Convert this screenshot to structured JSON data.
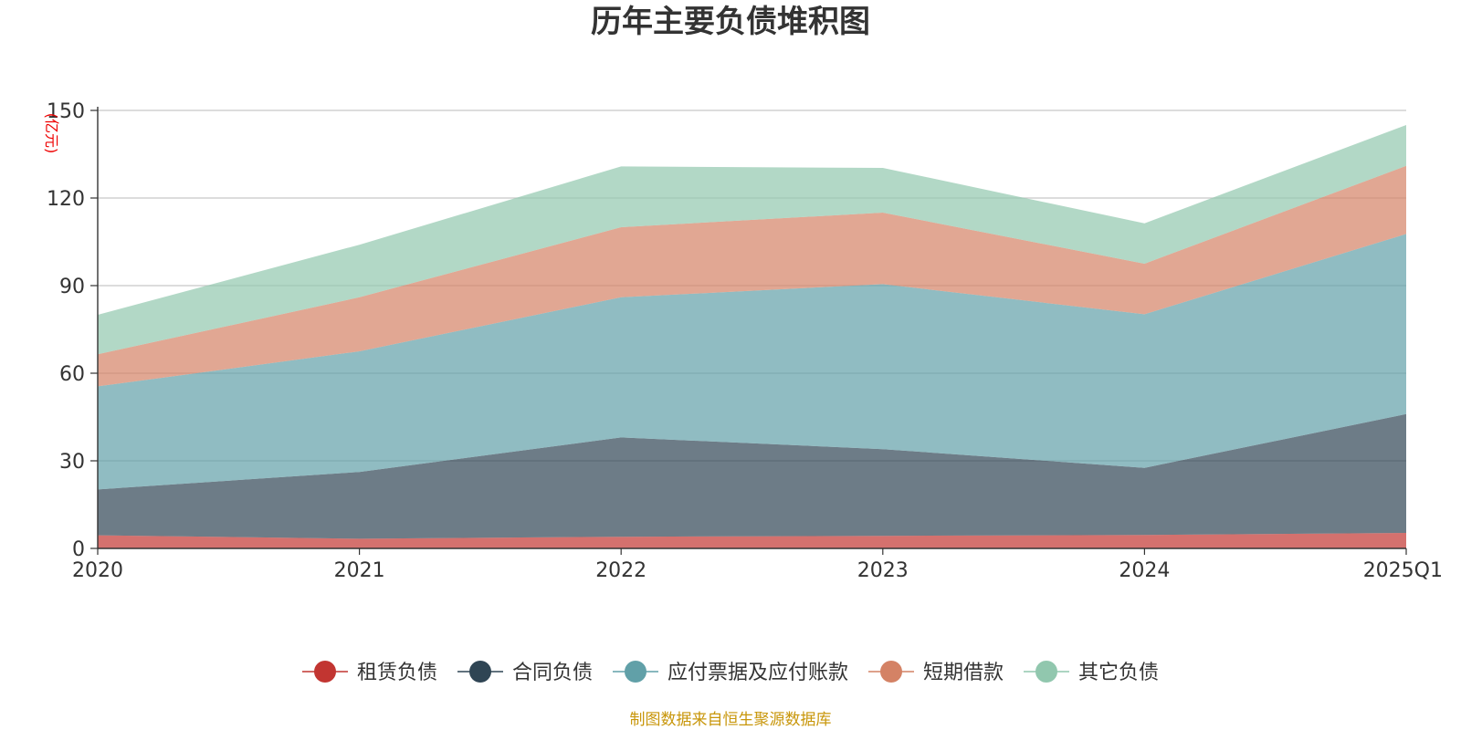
{
  "chart_data": {
    "type": "area",
    "stacked": true,
    "title": "历年主要负债堆积图",
    "unit_label": "(亿元)",
    "categories": [
      "2020",
      "2021",
      "2022",
      "2023",
      "2024",
      "2025Q1"
    ],
    "y_ticks": [
      "0",
      "30",
      "60",
      "90",
      "120",
      "150"
    ],
    "ylim": [
      0,
      150
    ],
    "grid": true,
    "legend_position": "bottom",
    "series": [
      {
        "name": "租赁负债",
        "color": "#c23531",
        "values": [
          4.5,
          3.3,
          4.0,
          4.3,
          4.6,
          5.3
        ]
      },
      {
        "name": "合同负债",
        "color": "#2f4554",
        "values": [
          15.7,
          22.9,
          34.0,
          29.7,
          23.0,
          40.7
        ]
      },
      {
        "name": "应付票据及应付账款",
        "color": "#61a0a8",
        "values": [
          35.3,
          41.3,
          48.0,
          56.5,
          52.6,
          61.7
        ]
      },
      {
        "name": "短期借款",
        "color": "#d48265",
        "values": [
          11.0,
          18.5,
          24.0,
          24.5,
          17.3,
          23.3
        ]
      },
      {
        "name": "其它负债",
        "color": "#91c7ae",
        "values": [
          13.5,
          18.0,
          20.8,
          15.3,
          13.8,
          14.0
        ]
      }
    ],
    "source_note": "制图数据来自恒生聚源数据库"
  }
}
